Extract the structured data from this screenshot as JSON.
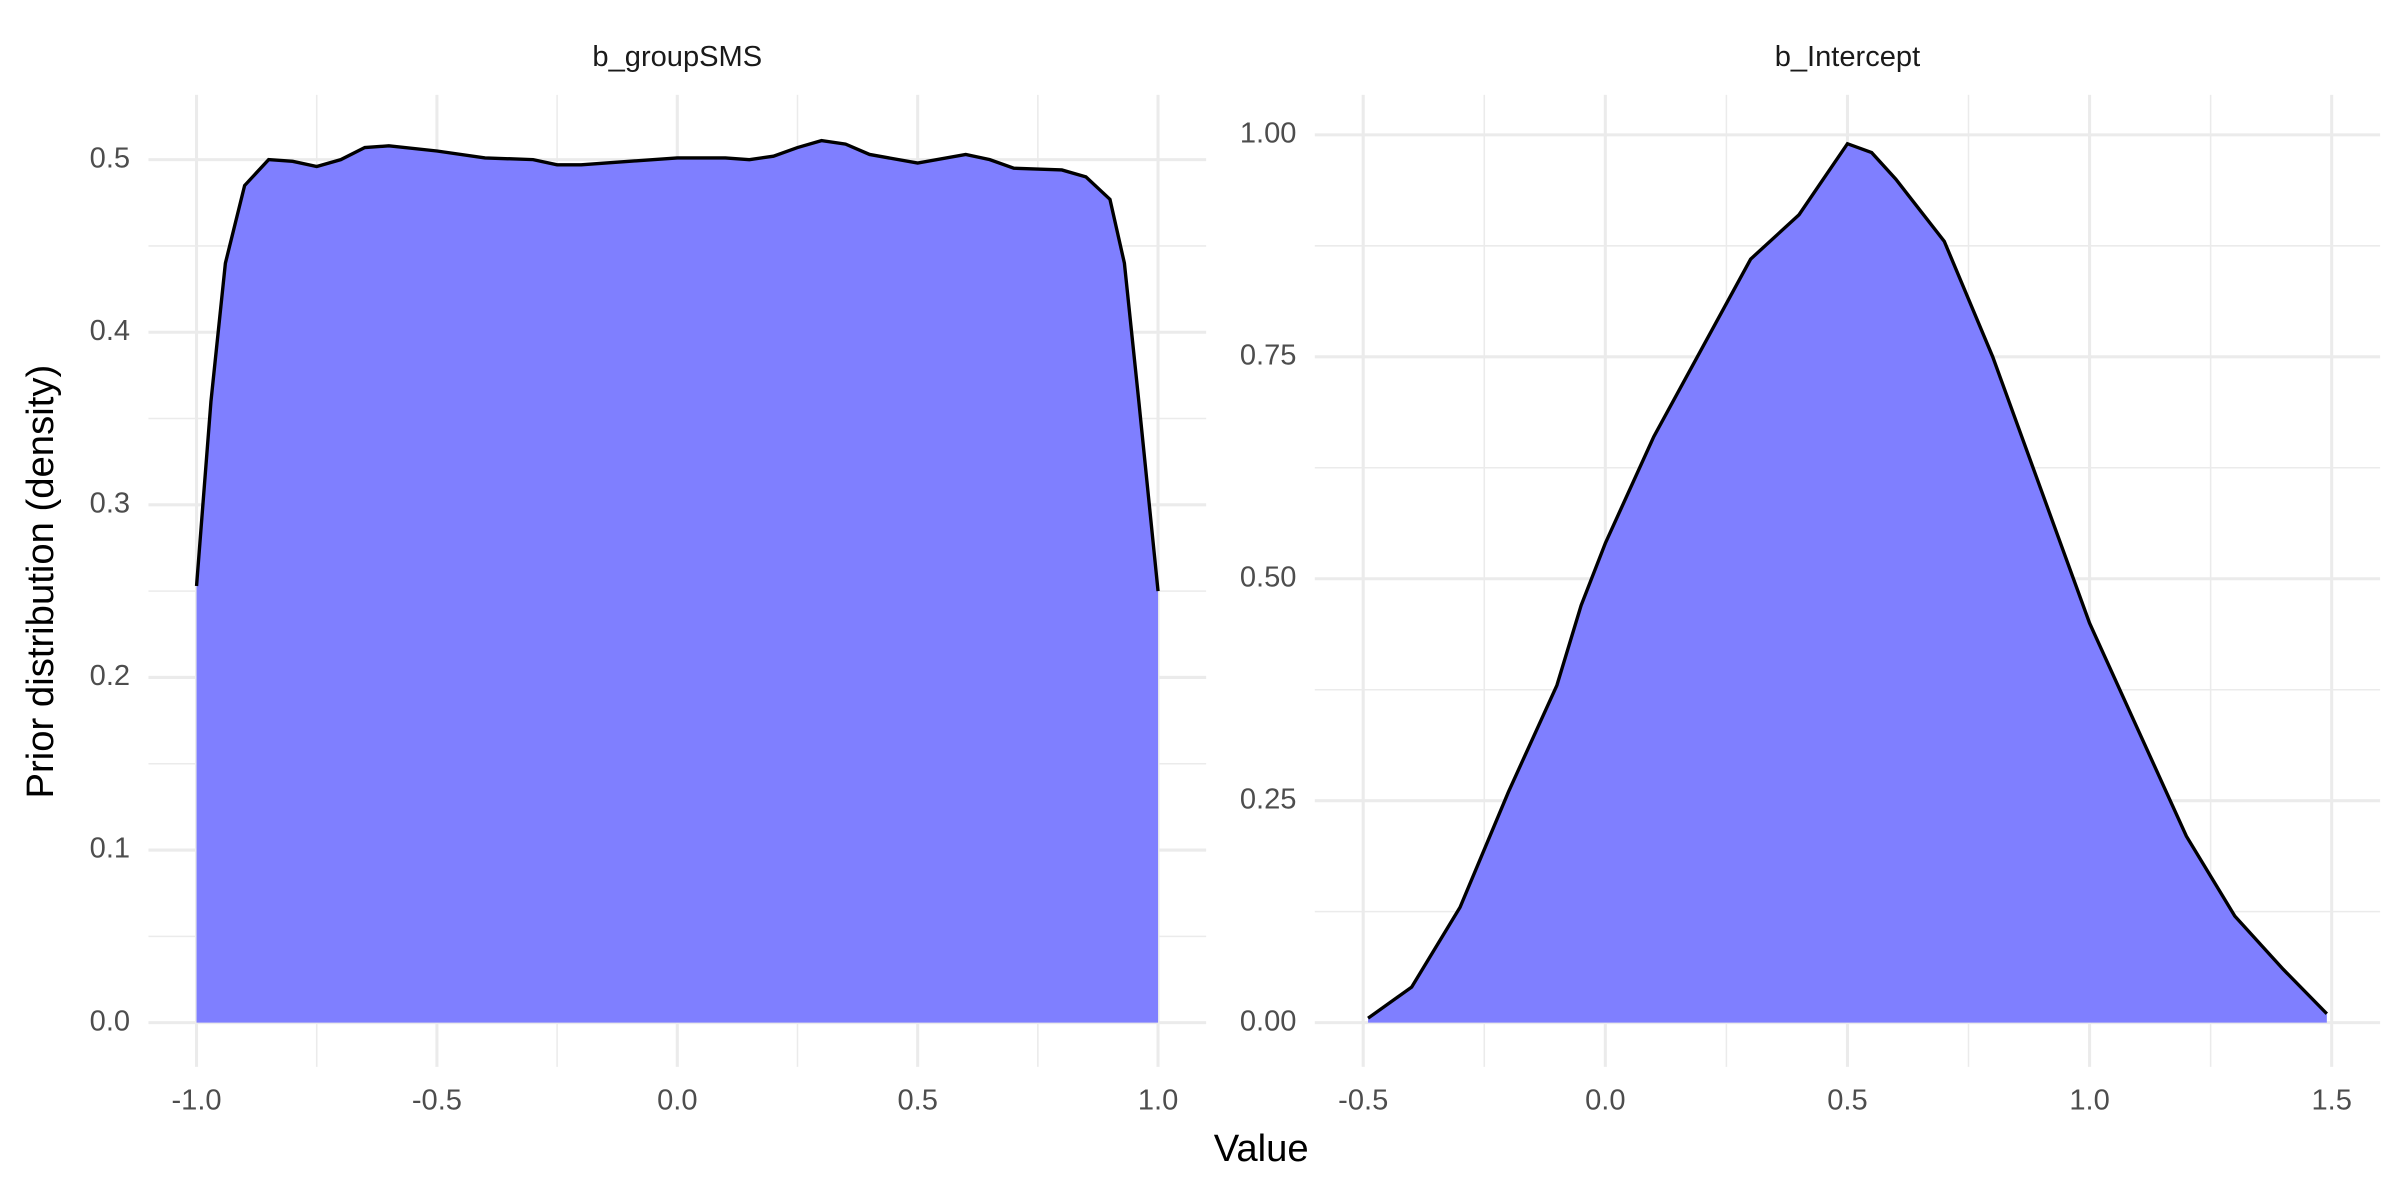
{
  "axis_labels": {
    "x": "Value",
    "y": "Prior distribution (density)"
  },
  "chart_data": [
    {
      "type": "area",
      "title": "b_groupSMS",
      "color": "#7f7fff",
      "line_color": "#000000",
      "grid": true,
      "x": [
        -1.0,
        -0.97,
        -0.94,
        -0.9,
        -0.85,
        -0.8,
        -0.75,
        -0.7,
        -0.65,
        -0.6,
        -0.5,
        -0.4,
        -0.3,
        -0.25,
        -0.2,
        -0.1,
        0.0,
        0.1,
        0.15,
        0.2,
        0.25,
        0.3,
        0.35,
        0.4,
        0.5,
        0.6,
        0.65,
        0.7,
        0.8,
        0.85,
        0.9,
        0.93,
        0.96,
        1.0
      ],
      "values": [
        0.253,
        0.36,
        0.44,
        0.485,
        0.5,
        0.499,
        0.496,
        0.5,
        0.507,
        0.508,
        0.505,
        0.501,
        0.5,
        0.497,
        0.497,
        0.499,
        0.501,
        0.501,
        0.5,
        0.502,
        0.507,
        0.511,
        0.509,
        0.503,
        0.498,
        0.503,
        0.5,
        0.495,
        0.494,
        0.49,
        0.477,
        0.44,
        0.36,
        0.25
      ],
      "xlim": [
        -1.1,
        1.1
      ],
      "ylim": [
        -0.0256,
        0.5375
      ],
      "xticks": [
        {
          "value": -1,
          "label": "-1.0"
        },
        -0.5,
        {
          "value": 0,
          "label": "0.0"
        },
        0.5,
        {
          "value": 1,
          "label": "1.0"
        }
      ],
      "yticks": [
        {
          "value": 0,
          "label": "0.0"
        },
        0.1,
        0.2,
        0.3,
        0.4,
        0.5
      ],
      "minor_xticks": [
        -0.75,
        -0.25,
        0.25,
        0.75
      ],
      "minor_yticks": [
        0.05,
        0.15,
        0.25,
        0.35,
        0.45
      ]
    },
    {
      "type": "area",
      "title": "b_Intercept",
      "color": "#7f7fff",
      "line_color": "#000000",
      "grid": true,
      "x": [
        -0.49,
        -0.4,
        -0.3,
        -0.2,
        -0.1,
        -0.05,
        0.0,
        0.1,
        0.2,
        0.3,
        0.4,
        0.45,
        0.5,
        0.55,
        0.6,
        0.7,
        0.8,
        0.9,
        1.0,
        1.1,
        1.2,
        1.3,
        1.4,
        1.49
      ],
      "values": [
        0.005,
        0.04,
        0.13,
        0.26,
        0.38,
        0.47,
        0.54,
        0.66,
        0.76,
        0.86,
        0.91,
        0.95,
        0.99,
        0.98,
        0.95,
        0.88,
        0.75,
        0.6,
        0.45,
        0.33,
        0.21,
        0.12,
        0.06,
        0.01
      ],
      "xlim": [
        -0.6,
        1.6
      ],
      "ylim": [
        -0.0498,
        1.045
      ],
      "xticks": [
        -0.5,
        {
          "value": 0,
          "label": "0.0"
        },
        0.5,
        {
          "value": 1,
          "label": "1.0"
        },
        1.5
      ],
      "yticks": [
        {
          "value": 0,
          "label": "0.00"
        },
        0.25,
        {
          "value": 0.5,
          "label": "0.50"
        },
        0.75,
        {
          "value": 1,
          "label": "1.00"
        }
      ],
      "minor_xticks": [
        -0.25,
        0.25,
        0.75,
        1.25
      ],
      "minor_yticks": [
        0.125,
        0.375,
        0.625,
        0.875
      ]
    }
  ]
}
